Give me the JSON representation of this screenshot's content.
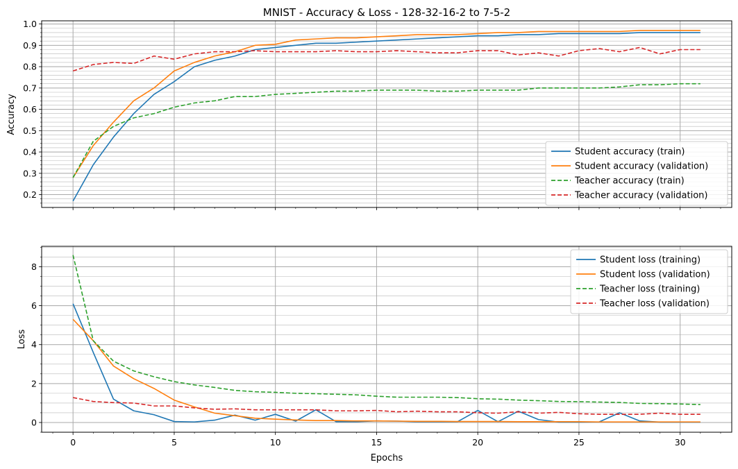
{
  "chart_data": [
    {
      "type": "line",
      "title": "MNIST - Accuracy & Loss - 128-32-16-2 to 7-5-2",
      "xlabel": "",
      "ylabel": "Accuracy",
      "xlim": [
        -1.55,
        32.55
      ],
      "ylim": [
        0.14,
        1.015
      ],
      "xticks": [
        0,
        5,
        10,
        15,
        20,
        25,
        30
      ],
      "yticks": [
        0.2,
        0.3,
        0.4,
        0.5,
        0.6,
        0.7,
        0.8,
        0.9,
        1.0
      ],
      "ytick_labels": [
        "0.2",
        "0.3",
        "0.4",
        "0.5",
        "0.6",
        "0.7",
        "0.8",
        "0.9",
        "1.0"
      ],
      "grid": "major and minor",
      "legend": "lower-right",
      "x": [
        0,
        1,
        2,
        3,
        4,
        5,
        6,
        7,
        8,
        9,
        10,
        11,
        12,
        13,
        14,
        15,
        16,
        17,
        18,
        19,
        20,
        21,
        22,
        23,
        24,
        25,
        26,
        27,
        28,
        29,
        30,
        31
      ],
      "series": [
        {
          "name": "Student accuracy (train)",
          "color": "#1f77b4",
          "dash": "solid",
          "values": [
            0.17,
            0.34,
            0.47,
            0.58,
            0.67,
            0.73,
            0.8,
            0.83,
            0.85,
            0.88,
            0.89,
            0.9,
            0.91,
            0.91,
            0.915,
            0.92,
            0.925,
            0.93,
            0.935,
            0.94,
            0.945,
            0.945,
            0.95,
            0.95,
            0.955,
            0.955,
            0.955,
            0.955,
            0.96,
            0.96,
            0.96,
            0.96
          ]
        },
        {
          "name": "Student accuracy (validation)",
          "color": "#ff7f0e",
          "dash": "solid",
          "values": [
            0.28,
            0.43,
            0.54,
            0.64,
            0.7,
            0.78,
            0.82,
            0.85,
            0.87,
            0.9,
            0.905,
            0.925,
            0.93,
            0.935,
            0.935,
            0.94,
            0.945,
            0.95,
            0.95,
            0.95,
            0.955,
            0.96,
            0.96,
            0.965,
            0.965,
            0.965,
            0.965,
            0.965,
            0.97,
            0.97,
            0.97,
            0.97
          ]
        },
        {
          "name": "Teacher accuracy (train)",
          "color": "#2ca02c",
          "dash": "dashed",
          "values": [
            0.28,
            0.45,
            0.52,
            0.56,
            0.58,
            0.61,
            0.63,
            0.64,
            0.66,
            0.66,
            0.67,
            0.675,
            0.68,
            0.685,
            0.685,
            0.69,
            0.69,
            0.69,
            0.685,
            0.685,
            0.69,
            0.69,
            0.69,
            0.7,
            0.7,
            0.7,
            0.7,
            0.705,
            0.715,
            0.715,
            0.72,
            0.72
          ]
        },
        {
          "name": "Teacher accuracy (validation)",
          "color": "#d62728",
          "dash": "dashed",
          "values": [
            0.78,
            0.81,
            0.82,
            0.815,
            0.85,
            0.835,
            0.86,
            0.87,
            0.87,
            0.875,
            0.87,
            0.87,
            0.87,
            0.875,
            0.87,
            0.87,
            0.875,
            0.87,
            0.865,
            0.865,
            0.875,
            0.875,
            0.855,
            0.865,
            0.85,
            0.875,
            0.885,
            0.87,
            0.89,
            0.86,
            0.88,
            0.88
          ]
        }
      ]
    },
    {
      "type": "line",
      "title": "",
      "xlabel": "Epochs",
      "ylabel": "Loss",
      "xlim": [
        -1.55,
        32.55
      ],
      "ylim": [
        -0.5,
        9.05
      ],
      "xticks": [
        0,
        5,
        10,
        15,
        20,
        25,
        30
      ],
      "xtick_labels": [
        "0",
        "5",
        "10",
        "15",
        "20",
        "25",
        "30"
      ],
      "yticks": [
        0,
        2,
        4,
        6,
        8
      ],
      "ytick_labels": [
        "0",
        "2",
        "4",
        "6",
        "8"
      ],
      "grid": "major and minor",
      "legend": "top-right",
      "x": [
        0,
        1,
        2,
        3,
        4,
        5,
        6,
        7,
        8,
        9,
        10,
        11,
        12,
        13,
        14,
        15,
        16,
        17,
        18,
        19,
        20,
        21,
        22,
        23,
        24,
        25,
        26,
        27,
        28,
        29,
        30,
        31
      ],
      "series": [
        {
          "name": "Student loss (training)",
          "color": "#1f77b4",
          "dash": "solid",
          "values": [
            6.1,
            3.6,
            1.2,
            0.6,
            0.4,
            0.05,
            0.03,
            0.12,
            0.38,
            0.12,
            0.42,
            0.07,
            0.65,
            0.04,
            0.04,
            0.08,
            0.07,
            0.04,
            0.04,
            0.04,
            0.62,
            0.04,
            0.58,
            0.15,
            0.02,
            0.02,
            0.03,
            0.5,
            0.08,
            0.02,
            0.02,
            0.02
          ]
        },
        {
          "name": "Student loss (validation)",
          "color": "#ff7f0e",
          "dash": "solid",
          "values": [
            5.3,
            4.2,
            2.9,
            2.25,
            1.75,
            1.15,
            0.8,
            0.48,
            0.35,
            0.22,
            0.17,
            0.13,
            0.1,
            0.1,
            0.08,
            0.08,
            0.07,
            0.06,
            0.06,
            0.05,
            0.05,
            0.05,
            0.04,
            0.04,
            0.04,
            0.04,
            0.03,
            0.03,
            0.03,
            0.03,
            0.03,
            0.03
          ]
        },
        {
          "name": "Teacher loss (training)",
          "color": "#2ca02c",
          "dash": "dashed",
          "values": [
            8.6,
            4.2,
            3.15,
            2.65,
            2.35,
            2.1,
            1.93,
            1.8,
            1.65,
            1.58,
            1.55,
            1.5,
            1.48,
            1.45,
            1.42,
            1.35,
            1.3,
            1.3,
            1.3,
            1.28,
            1.22,
            1.2,
            1.15,
            1.12,
            1.08,
            1.07,
            1.05,
            1.03,
            0.98,
            0.97,
            0.95,
            0.92
          ]
        },
        {
          "name": "Teacher loss (validation)",
          "color": "#d62728",
          "dash": "dashed",
          "values": [
            1.28,
            1.08,
            1.02,
            1.0,
            0.85,
            0.85,
            0.75,
            0.68,
            0.7,
            0.65,
            0.65,
            0.65,
            0.65,
            0.6,
            0.6,
            0.62,
            0.55,
            0.58,
            0.55,
            0.55,
            0.5,
            0.48,
            0.55,
            0.48,
            0.52,
            0.45,
            0.42,
            0.42,
            0.42,
            0.48,
            0.42,
            0.42
          ]
        }
      ]
    }
  ]
}
